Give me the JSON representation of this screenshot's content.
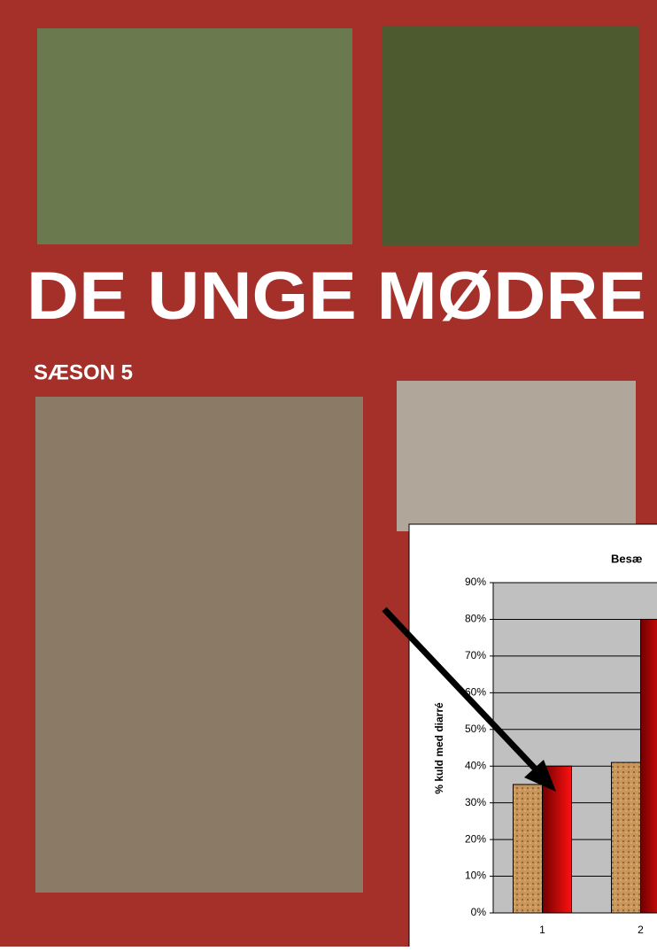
{
  "poster": {
    "title": "DE UNGE MØDRE",
    "subtitle": "SÆSON 5"
  },
  "chart_data": {
    "type": "bar",
    "title": "Besæ",
    "y_label": "% kuld med diarré",
    "categories": [
      "1",
      "2"
    ],
    "series": [
      {
        "color": "#c8955a",
        "values": [
          35,
          41
        ]
      },
      {
        "color": "#e00000",
        "values": [
          40,
          80
        ]
      }
    ],
    "ylim": [
      0,
      90
    ],
    "yticks": [
      {
        "value": 0,
        "label": "0%"
      },
      {
        "value": 10,
        "label": "10%"
      },
      {
        "value": 20,
        "label": "20%"
      },
      {
        "value": 30,
        "label": "30%"
      },
      {
        "value": 40,
        "label": "40%"
      },
      {
        "value": 50,
        "label": "50%"
      },
      {
        "value": 60,
        "label": "60%"
      },
      {
        "value": 70,
        "label": "70%"
      },
      {
        "value": 80,
        "label": "80%"
      },
      {
        "value": 90,
        "label": "90%"
      }
    ],
    "grid": true
  }
}
